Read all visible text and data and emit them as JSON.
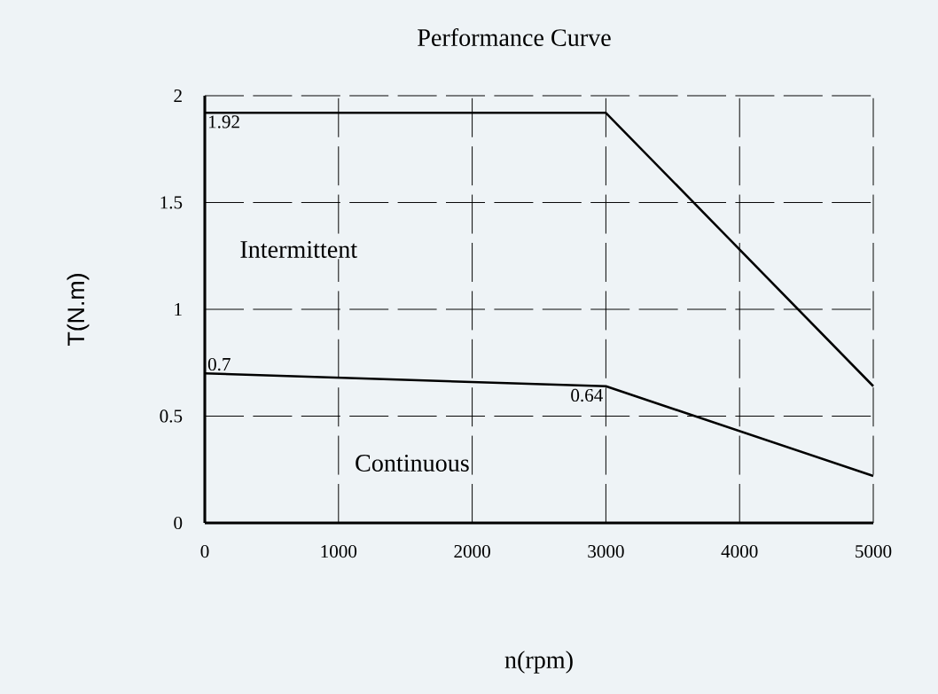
{
  "chart_data": {
    "type": "line",
    "title": "Performance Curve",
    "xlabel": "n(rpm)",
    "ylabel": "T(N.m)",
    "x": [
      0,
      3000,
      5000
    ],
    "series": [
      {
        "color": "#000000",
        "values": [
          1.92,
          1.92,
          0.64
        ],
        "value_labels": [
          "1.92",
          null,
          null
        ]
      },
      {
        "color": "#000000",
        "values": [
          0.7,
          0.64,
          0.22
        ],
        "value_labels": [
          "0.7",
          "0.64",
          null
        ]
      }
    ],
    "annotations": [
      "Intermittent",
      "Continuous"
    ],
    "xlim": [
      0,
      5000
    ],
    "ylim": [
      0,
      2
    ],
    "xticks": [
      0,
      1000,
      2000,
      3000,
      4000,
      5000
    ],
    "yticks": [
      0,
      0.5,
      1,
      1.5,
      2
    ],
    "grid": true,
    "marker": "none",
    "line_style": "solid"
  }
}
